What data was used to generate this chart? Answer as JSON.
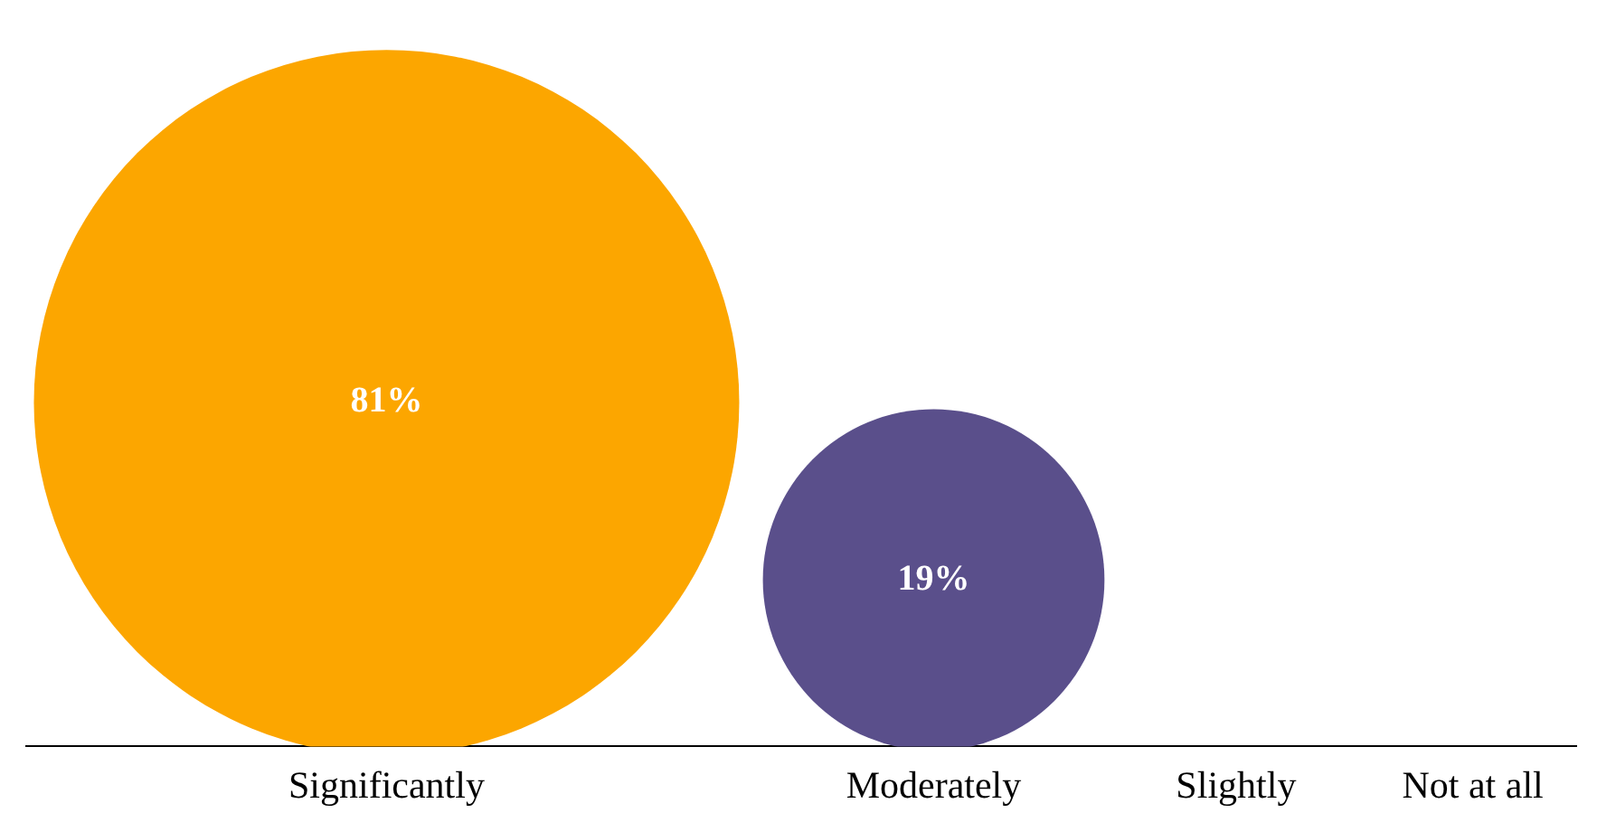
{
  "chart_data": {
    "type": "other",
    "categories": [
      "Significantly",
      "Moderately",
      "Slightly",
      "Not at all"
    ],
    "values": [
      81,
      19,
      null,
      null
    ],
    "value_labels": [
      "81%",
      "19%",
      null,
      null
    ],
    "colors": [
      "#fca600",
      "#5a4f8b",
      null,
      null
    ],
    "legend": false
  }
}
